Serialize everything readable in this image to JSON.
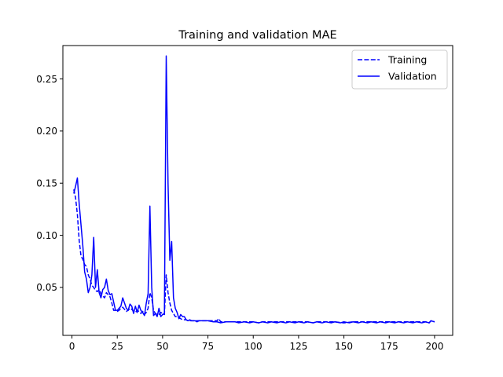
{
  "chart_data": {
    "type": "line",
    "title": "Training and validation MAE",
    "xlabel": "",
    "ylabel": "",
    "xlim": [
      -5,
      210
    ],
    "ylim": [
      0.004,
      0.282
    ],
    "xticks": [
      0,
      25,
      50,
      75,
      100,
      125,
      150,
      175,
      200
    ],
    "yticks": [
      0.05,
      0.1,
      0.15,
      0.2,
      0.25
    ],
    "ytick_labels": [
      "0.05",
      "0.10",
      "0.15",
      "0.20",
      "0.25"
    ],
    "grid": false,
    "legend_position": "top-right",
    "series": [
      {
        "name": "Training",
        "style": "dashed",
        "color": "#0000ff",
        "x": [
          1,
          2,
          3,
          4,
          5,
          6,
          7,
          8,
          9,
          10,
          11,
          12,
          13,
          14,
          15,
          16,
          17,
          18,
          19,
          20,
          21,
          22,
          23,
          24,
          25,
          26,
          27,
          28,
          29,
          30,
          31,
          32,
          33,
          34,
          35,
          36,
          37,
          38,
          39,
          40,
          41,
          42,
          43,
          44,
          45,
          46,
          47,
          48,
          49,
          50,
          51,
          52,
          53,
          54,
          55,
          56,
          57,
          58,
          59,
          60,
          61,
          62,
          63,
          64,
          65,
          66,
          67,
          68,
          69,
          70,
          75,
          80,
          81,
          82,
          85,
          90,
          95,
          100,
          103,
          105,
          110,
          115,
          120,
          125,
          130,
          133,
          135,
          140,
          145,
          150,
          155,
          160,
          165,
          170,
          175,
          180,
          185,
          190,
          195,
          197,
          198,
          200
        ],
        "y": [
          0.144,
          0.136,
          0.12,
          0.095,
          0.08,
          0.077,
          0.072,
          0.07,
          0.062,
          0.058,
          0.052,
          0.05,
          0.047,
          0.046,
          0.048,
          0.044,
          0.042,
          0.04,
          0.045,
          0.043,
          0.041,
          0.035,
          0.028,
          0.028,
          0.027,
          0.028,
          0.03,
          0.031,
          0.029,
          0.027,
          0.028,
          0.03,
          0.029,
          0.027,
          0.026,
          0.028,
          0.027,
          0.025,
          0.027,
          0.024,
          0.026,
          0.03,
          0.045,
          0.04,
          0.028,
          0.025,
          0.024,
          0.024,
          0.026,
          0.025,
          0.024,
          0.062,
          0.045,
          0.035,
          0.028,
          0.025,
          0.022,
          0.022,
          0.021,
          0.02,
          0.019,
          0.019,
          0.019,
          0.018,
          0.018,
          0.018,
          0.018,
          0.018,
          0.018,
          0.018,
          0.018,
          0.018,
          0.02,
          0.017,
          0.017,
          0.017,
          0.017,
          0.017,
          0.016,
          0.017,
          0.017,
          0.017,
          0.017,
          0.017,
          0.017,
          0.016,
          0.017,
          0.017,
          0.017,
          0.016,
          0.017,
          0.017,
          0.017,
          0.017,
          0.017,
          0.017,
          0.017,
          0.017,
          0.017,
          0.016,
          0.018,
          0.017
        ]
      },
      {
        "name": "Validation",
        "style": "solid",
        "color": "#0000ff",
        "x": [
          1,
          2,
          3,
          4,
          5,
          6,
          7,
          8,
          9,
          10,
          11,
          12,
          13,
          14,
          15,
          16,
          17,
          18,
          19,
          20,
          21,
          22,
          23,
          24,
          25,
          26,
          27,
          28,
          29,
          30,
          31,
          32,
          33,
          34,
          35,
          36,
          37,
          38,
          39,
          40,
          41,
          42,
          43,
          44,
          45,
          46,
          47,
          48,
          49,
          50,
          51,
          52,
          53,
          54,
          55,
          56,
          57,
          58,
          59,
          60,
          61,
          62,
          63,
          64,
          65,
          66,
          67,
          68,
          69,
          70,
          72,
          75,
          78,
          80,
          82,
          85,
          88,
          90,
          92,
          95,
          98,
          100,
          103,
          105,
          108,
          110,
          113,
          115,
          118,
          120,
          123,
          125,
          128,
          130,
          133,
          135,
          138,
          140,
          143,
          145,
          148,
          150,
          153,
          155,
          158,
          160,
          163,
          165,
          168,
          170,
          173,
          175,
          178,
          180,
          183,
          185,
          188,
          190,
          193,
          195,
          197,
          198,
          200
        ],
        "y": [
          0.14,
          0.147,
          0.155,
          0.13,
          0.11,
          0.09,
          0.065,
          0.058,
          0.045,
          0.05,
          0.062,
          0.098,
          0.05,
          0.067,
          0.045,
          0.04,
          0.048,
          0.05,
          0.058,
          0.047,
          0.043,
          0.044,
          0.036,
          0.028,
          0.028,
          0.03,
          0.032,
          0.04,
          0.035,
          0.03,
          0.028,
          0.034,
          0.032,
          0.025,
          0.032,
          0.026,
          0.033,
          0.028,
          0.026,
          0.023,
          0.035,
          0.044,
          0.128,
          0.05,
          0.023,
          0.025,
          0.022,
          0.03,
          0.022,
          0.024,
          0.025,
          0.272,
          0.15,
          0.076,
          0.094,
          0.04,
          0.03,
          0.026,
          0.02,
          0.024,
          0.022,
          0.022,
          0.019,
          0.018,
          0.019,
          0.018,
          0.018,
          0.018,
          0.017,
          0.018,
          0.018,
          0.018,
          0.017,
          0.017,
          0.016,
          0.017,
          0.017,
          0.017,
          0.016,
          0.017,
          0.016,
          0.017,
          0.016,
          0.017,
          0.016,
          0.017,
          0.016,
          0.017,
          0.016,
          0.017,
          0.016,
          0.017,
          0.016,
          0.017,
          0.016,
          0.017,
          0.016,
          0.017,
          0.016,
          0.017,
          0.016,
          0.017,
          0.016,
          0.017,
          0.016,
          0.017,
          0.016,
          0.017,
          0.016,
          0.017,
          0.016,
          0.017,
          0.016,
          0.017,
          0.016,
          0.017,
          0.016,
          0.017,
          0.016,
          0.017,
          0.016,
          0.018,
          0.017
        ]
      }
    ]
  }
}
